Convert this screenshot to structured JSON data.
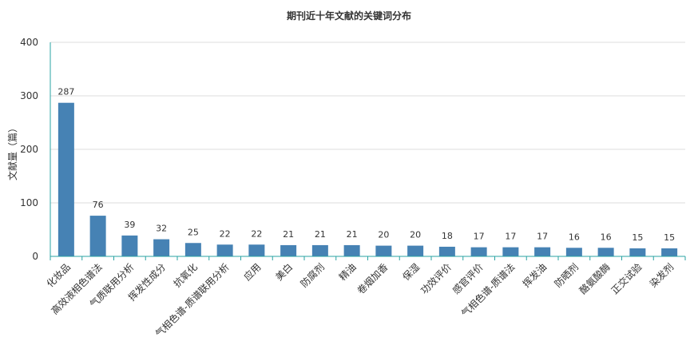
{
  "chart_data": {
    "type": "bar",
    "title": "期刊近十年文献的关键词分布",
    "ylabel": "文献量（篇）",
    "xlabel": "",
    "ylim": [
      0,
      400
    ],
    "yticks": [
      0,
      100,
      200,
      300,
      400
    ],
    "grid": true,
    "bar_color": "#4682b4",
    "categories": [
      "化妆品",
      "高效液相色谱法",
      "气质联用分析",
      "挥发性成分",
      "抗氧化",
      "气相色谱-质谱联用分析",
      "应用",
      "美白",
      "防腐剂",
      "精油",
      "卷烟加香",
      "保湿",
      "功效评价",
      "感官评价",
      "气相色谱-质谱法",
      "挥发油",
      "防晒剂",
      "酪氨酸酶",
      "正交试验",
      "染发剂"
    ],
    "values": [
      287,
      76,
      39,
      32,
      25,
      22,
      22,
      21,
      21,
      21,
      20,
      20,
      18,
      17,
      17,
      17,
      16,
      16,
      15,
      15
    ]
  }
}
